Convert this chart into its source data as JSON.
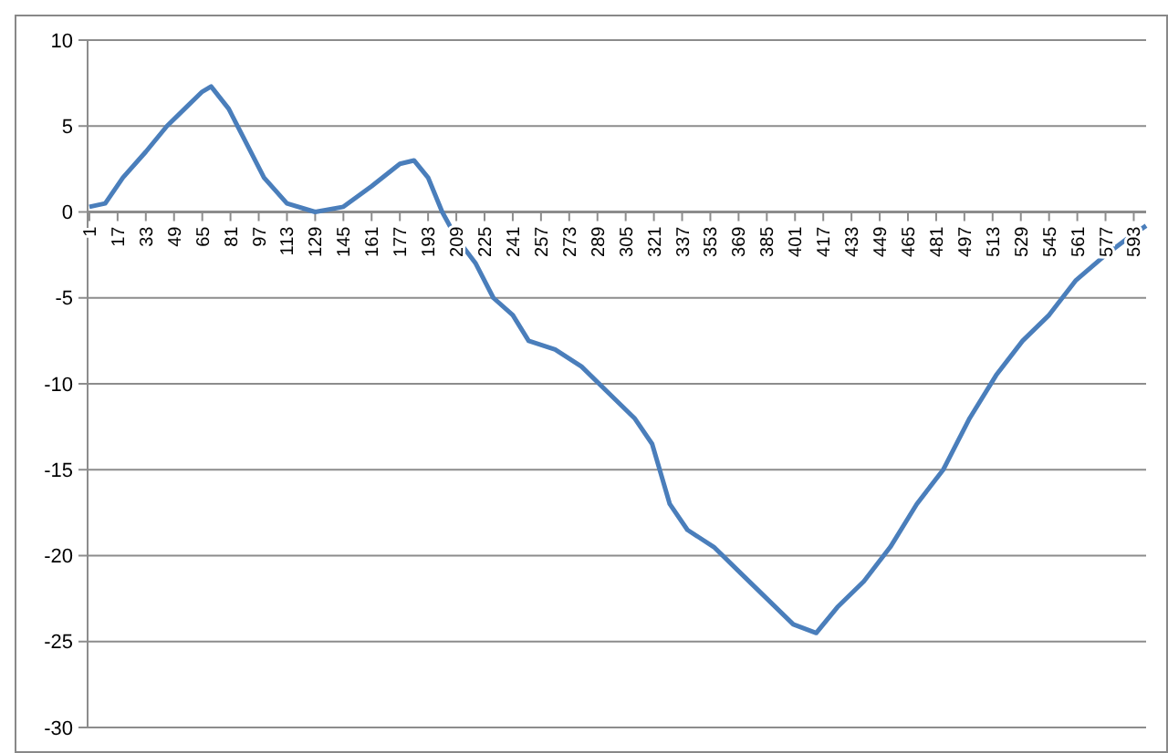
{
  "chart_data": {
    "type": "line",
    "x": [
      1,
      10,
      20,
      33,
      45,
      55,
      65,
      70,
      80,
      90,
      100,
      113,
      129,
      145,
      161,
      177,
      185,
      193,
      201,
      209,
      220,
      230,
      241,
      250,
      265,
      280,
      295,
      310,
      320,
      330,
      340,
      355,
      370,
      385,
      400,
      413,
      425,
      440,
      455,
      470,
      485,
      500,
      515,
      530,
      545,
      560,
      577,
      590,
      600
    ],
    "series": [
      {
        "color": "#4a7ebb",
        "values": [
          0.3,
          0.5,
          2,
          3.5,
          5,
          6,
          7,
          7.3,
          6,
          4,
          2,
          0.5,
          0,
          0.3,
          1.5,
          2.8,
          3,
          2,
          0,
          -1.5,
          -3,
          -5,
          -6,
          -7.5,
          -8,
          -9,
          -10.5,
          -12,
          -13.5,
          -17,
          -18.5,
          -19.5,
          -21,
          -22.5,
          -24,
          -24.5,
          -23,
          -21.5,
          -19.5,
          -17,
          -15,
          -12,
          -9.5,
          -7.5,
          -6,
          -4,
          -2.5,
          -1.5,
          -0.8
        ]
      }
    ],
    "xlim": [
      0,
      600
    ],
    "xticks": [
      1,
      17,
      33,
      49,
      65,
      81,
      97,
      113,
      129,
      145,
      161,
      177,
      193,
      209,
      225,
      241,
      257,
      273,
      289,
      305,
      321,
      337,
      353,
      369,
      385,
      401,
      417,
      433,
      449,
      465,
      481,
      497,
      513,
      529,
      545,
      561,
      577,
      593
    ],
    "ylim": [
      -30,
      10
    ],
    "yticks": [
      -30,
      -25,
      -20,
      -15,
      -10,
      -5,
      0,
      5,
      10
    ],
    "grid": "y"
  }
}
